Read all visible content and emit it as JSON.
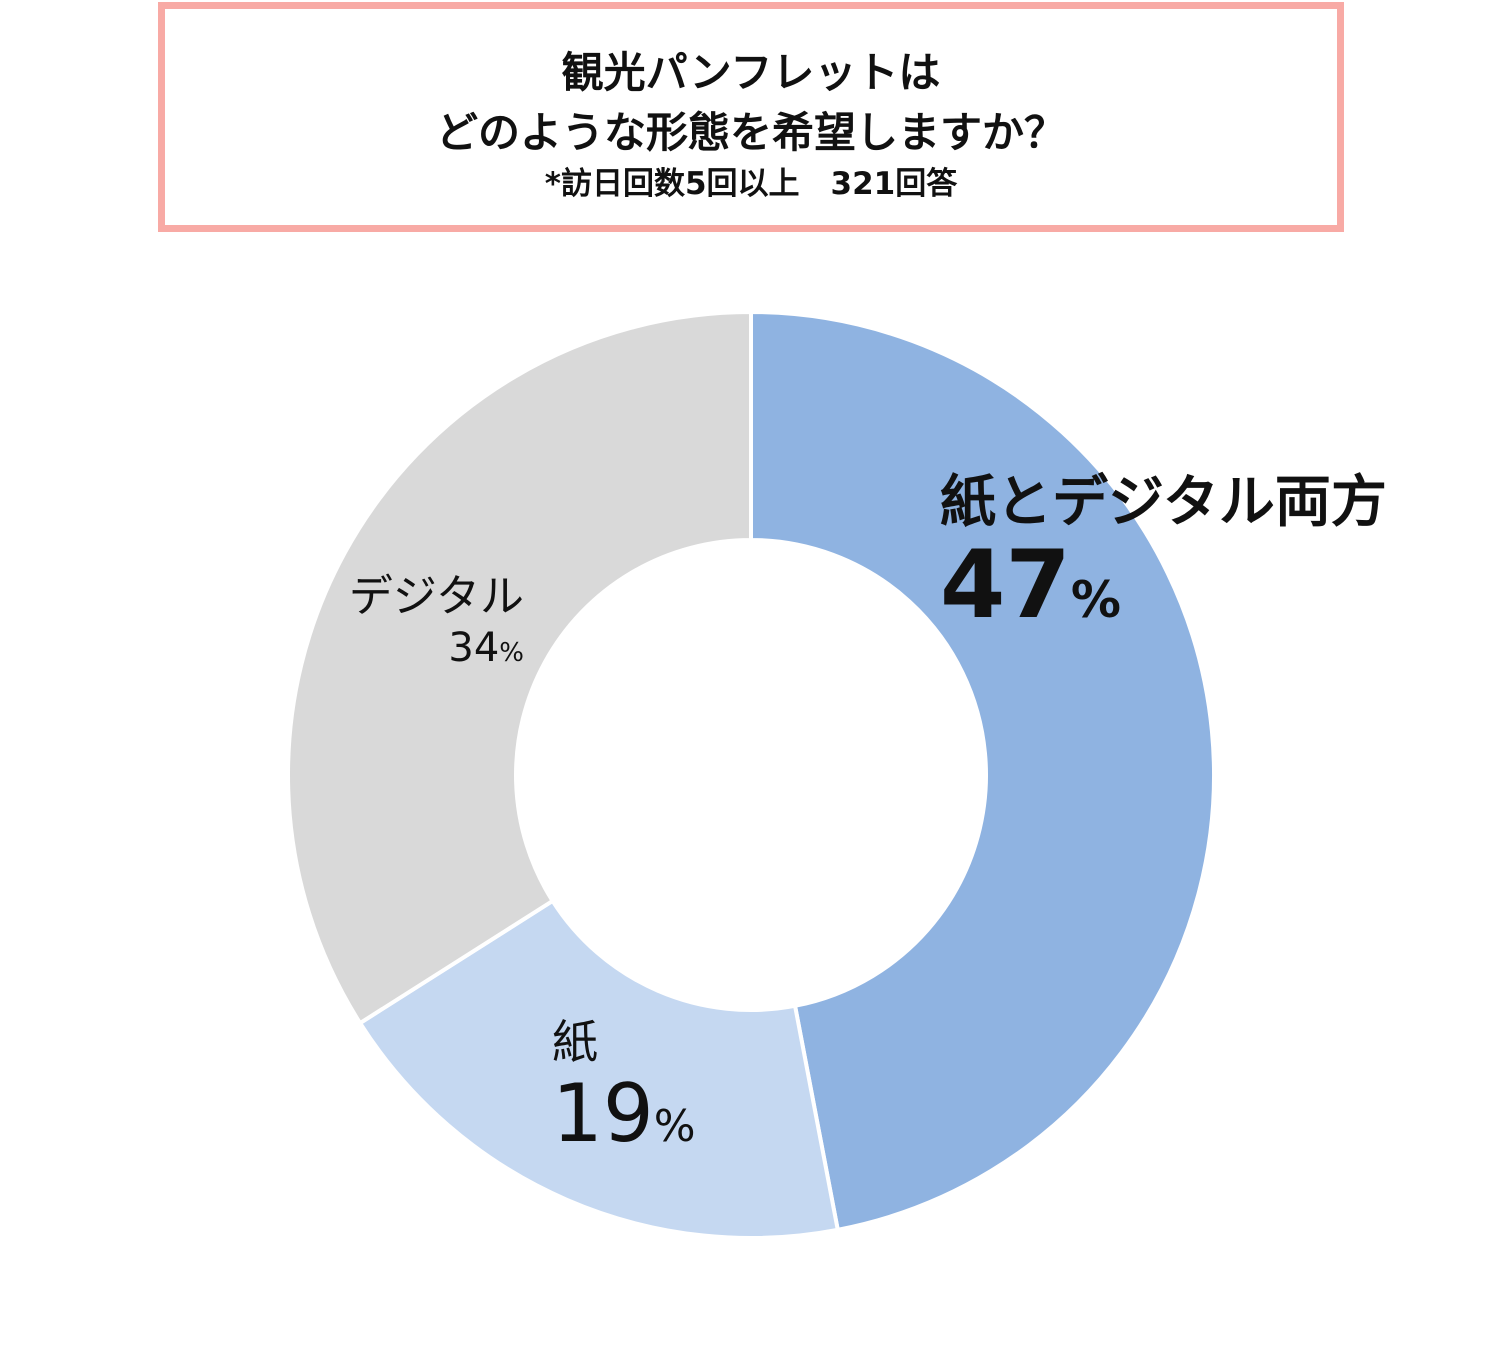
{
  "title": {
    "line1": "観光パンフレットは",
    "line2": "どのような形態を希望しますか？",
    "subtitle": "*訪日回数5回以上　321回答"
  },
  "chart_data": {
    "type": "pie",
    "donut": true,
    "title": "観光パンフレットは どのような形態を希望しますか？",
    "subtitle": "*訪日回数5回以上　321回答",
    "categories": [
      "紙とデジタル両方",
      "紙",
      "デジタル"
    ],
    "values": [
      47,
      19,
      34
    ],
    "unit": "%",
    "colors": [
      "#8fb3e1",
      "#c5d8f1",
      "#d9d9d9"
    ],
    "legend": "none",
    "labels": [
      {
        "name": "紙とデジタル両方",
        "value": "47",
        "unit": "%"
      },
      {
        "name": "紙",
        "value": "19",
        "unit": "%"
      },
      {
        "name": "デジタル",
        "value": "34",
        "unit": "%"
      }
    ]
  }
}
